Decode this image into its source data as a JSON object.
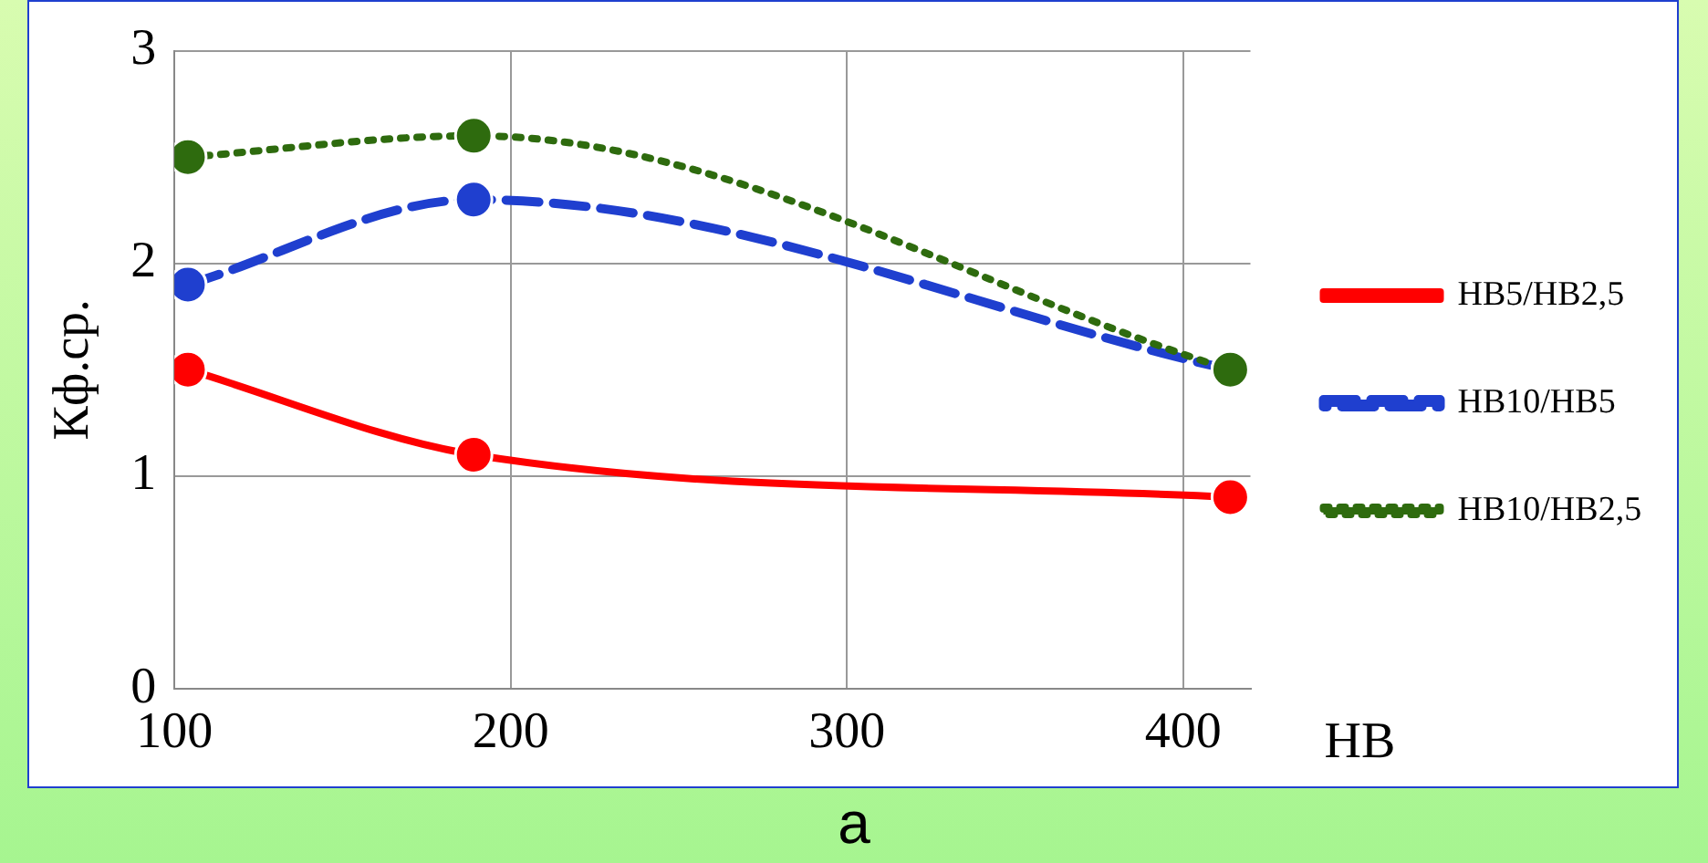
{
  "chart_data": {
    "type": "line",
    "xlabel": "HB",
    "ylabel": "Кф.ср.",
    "annotations": [
      "а"
    ],
    "x": [
      104,
      189,
      414
    ],
    "xlim": [
      100,
      420
    ],
    "xticks": [
      100,
      200,
      300,
      400
    ],
    "ylim": [
      0,
      3
    ],
    "yticks": [
      0,
      1,
      2,
      3
    ],
    "grid": true,
    "legend": "right",
    "marker": "circle",
    "series": [
      {
        "name": "HB5/HB2,5",
        "color": "#ff0000",
        "values": [
          1.5,
          1.1,
          0.9
        ],
        "line_style": "solid"
      },
      {
        "name": "HB10/HB5",
        "color": "#1f3fcf",
        "values": [
          1.9,
          2.3,
          1.5
        ],
        "line_style": "dashed"
      },
      {
        "name": "HB10/HB2,5",
        "color": "#2e6b0e",
        "values": [
          2.5,
          2.6,
          1.5
        ],
        "line_style": "dotted"
      }
    ]
  }
}
